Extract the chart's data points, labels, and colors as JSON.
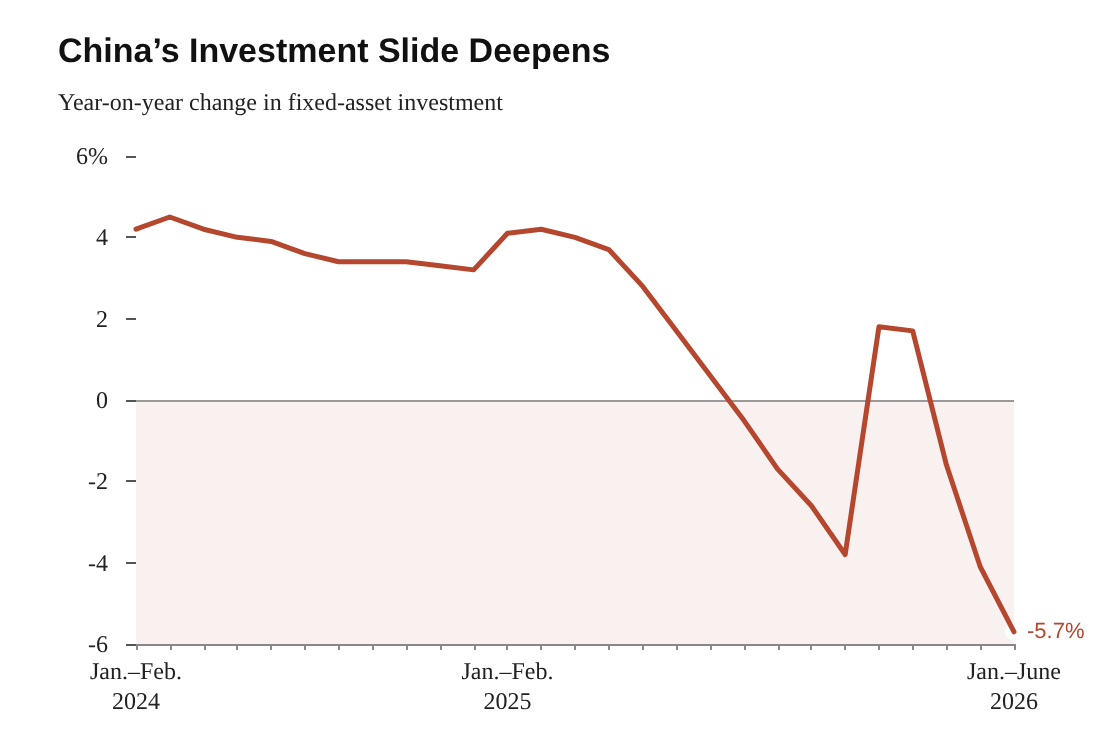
{
  "chart_data": {
    "type": "line",
    "title": "China’s Investment Slide Deepens",
    "subtitle": "Year-on-year change in fixed-asset investment",
    "categories": [
      "Jan.–Feb.\n2024",
      null,
      null,
      null,
      null,
      null,
      null,
      null,
      null,
      null,
      null,
      "Jan.–Feb.\n2025",
      null,
      null,
      null,
      null,
      null,
      null,
      null,
      null,
      null,
      null,
      null,
      null,
      null,
      null,
      "Jan.–June\n2026"
    ],
    "series": [
      {
        "color": "#b5472f",
        "values": [
          4.2,
          4.5,
          4.2,
          4.0,
          3.9,
          3.6,
          3.4,
          3.4,
          3.4,
          3.3,
          3.2,
          4.1,
          4.2,
          4.0,
          3.7,
          2.8,
          1.7,
          0.6,
          -0.5,
          -1.7,
          -2.6,
          -3.8,
          1.8,
          1.7,
          -1.6,
          -4.1,
          -5.7
        ]
      }
    ],
    "ylim": [
      -6,
      6
    ],
    "yticks": [
      -6,
      -4,
      -2,
      0,
      2,
      4,
      {
        "value": 6,
        "label": "6%"
      }
    ],
    "ref_lines": [
      {
        "axis": "y",
        "value": 0,
        "color": "#999999"
      }
    ],
    "bands": [
      {
        "axis": "y",
        "from": -6,
        "to": 0,
        "color": "#f9f1f0"
      }
    ],
    "annotations": [
      {
        "text": "-5.7%",
        "x": "Jan.–June\n2026",
        "y": -5.7
      }
    ],
    "grid": false,
    "marker": "none",
    "line_style": "solid"
  }
}
